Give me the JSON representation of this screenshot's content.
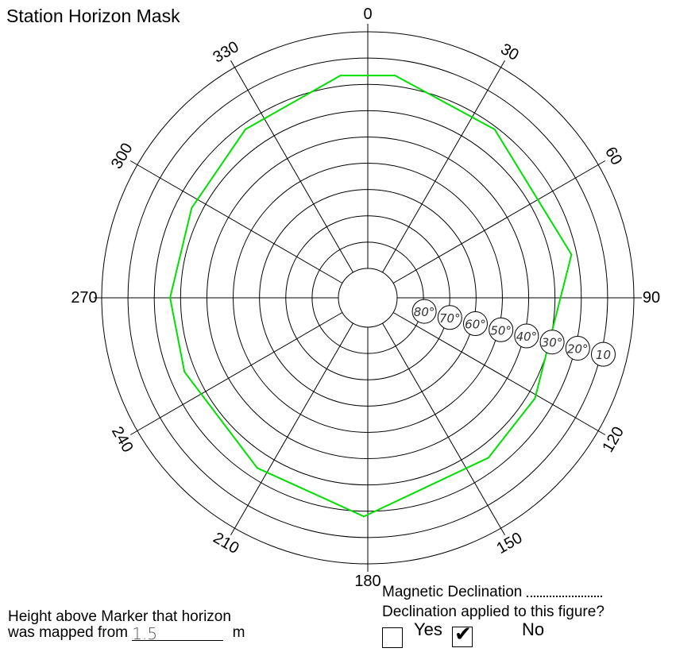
{
  "title": "Station Horizon Mask",
  "chart_data": {
    "type": "polar",
    "azimuth_labels": [
      "0",
      "30",
      "60",
      "90",
      "120",
      "150",
      "180",
      "210",
      "240",
      "270",
      "300",
      "330"
    ],
    "elevation_rings": [
      "80°",
      "70°",
      "60°",
      "50°",
      "40°",
      "30°",
      "20°",
      "10"
    ],
    "elevation_rings_deg": [
      80,
      70,
      60,
      50,
      40,
      30,
      20,
      10
    ],
    "horizon_mask": {
      "color": "#00e000",
      "points": [
        {
          "azimuth": 353,
          "elevation": 16
        },
        {
          "azimuth": 7,
          "elevation": 16
        },
        {
          "azimuth": 37,
          "elevation": 21
        },
        {
          "azimuth": 78,
          "elevation": 22
        },
        {
          "azimuth": 121,
          "elevation": 27
        },
        {
          "azimuth": 143,
          "elevation": 25
        },
        {
          "azimuth": 181,
          "elevation": 18
        },
        {
          "azimuth": 213,
          "elevation": 24
        },
        {
          "azimuth": 248,
          "elevation": 26
        },
        {
          "azimuth": 270,
          "elevation": 26
        },
        {
          "azimuth": 297,
          "elevation": 26
        },
        {
          "azimuth": 324,
          "elevation": 22
        }
      ]
    }
  },
  "height": {
    "line1": "Height above Marker that horizon",
    "line2": "was mapped from",
    "value": "1.5",
    "unit": "m"
  },
  "declination": {
    "label": "Magnetic Declination",
    "applied_question": "Declination applied to this figure?",
    "yes_label": "Yes",
    "no_label": "No",
    "yes_checked": false,
    "no_checked": true
  }
}
